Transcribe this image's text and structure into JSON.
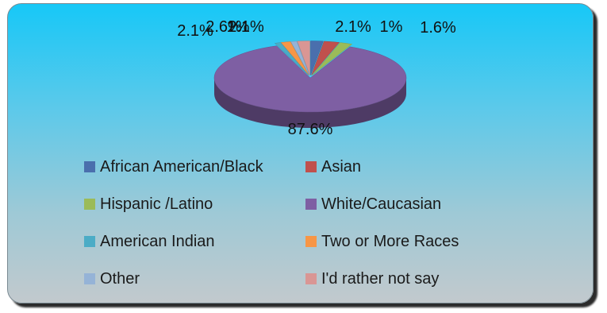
{
  "chart_data": {
    "type": "pie",
    "style": "3d-exploded",
    "title": "",
    "legend_position": "bottom",
    "slices": [
      {
        "label": "African American/Black",
        "value": 2.1,
        "value_label": "2.1%",
        "color": "#4a6fad"
      },
      {
        "label": "Asian",
        "value": 2.6,
        "value_label": "2.6%",
        "color": "#c0504d"
      },
      {
        "label": "Hispanic /Latino",
        "value": 2.1,
        "value_label": "2.1%",
        "color": "#9bbb59"
      },
      {
        "label": "White/Caucasian",
        "value": 87.6,
        "value_label": "87.6%",
        "color": "#7e5fa3"
      },
      {
        "label": "American Indian",
        "value": 1,
        "value_label": "1%",
        "color": "#4bacc6"
      },
      {
        "label": "Two or More Races",
        "value": 1.6,
        "value_label": "1.6%",
        "color": "#f79646"
      },
      {
        "label": "Other",
        "value": 1,
        "value_label": "1%",
        "color": "#95b3d7"
      },
      {
        "label": "I'd rather not say",
        "value": 2.1,
        "value_label": "2.1%",
        "color": "#d99694"
      }
    ]
  }
}
